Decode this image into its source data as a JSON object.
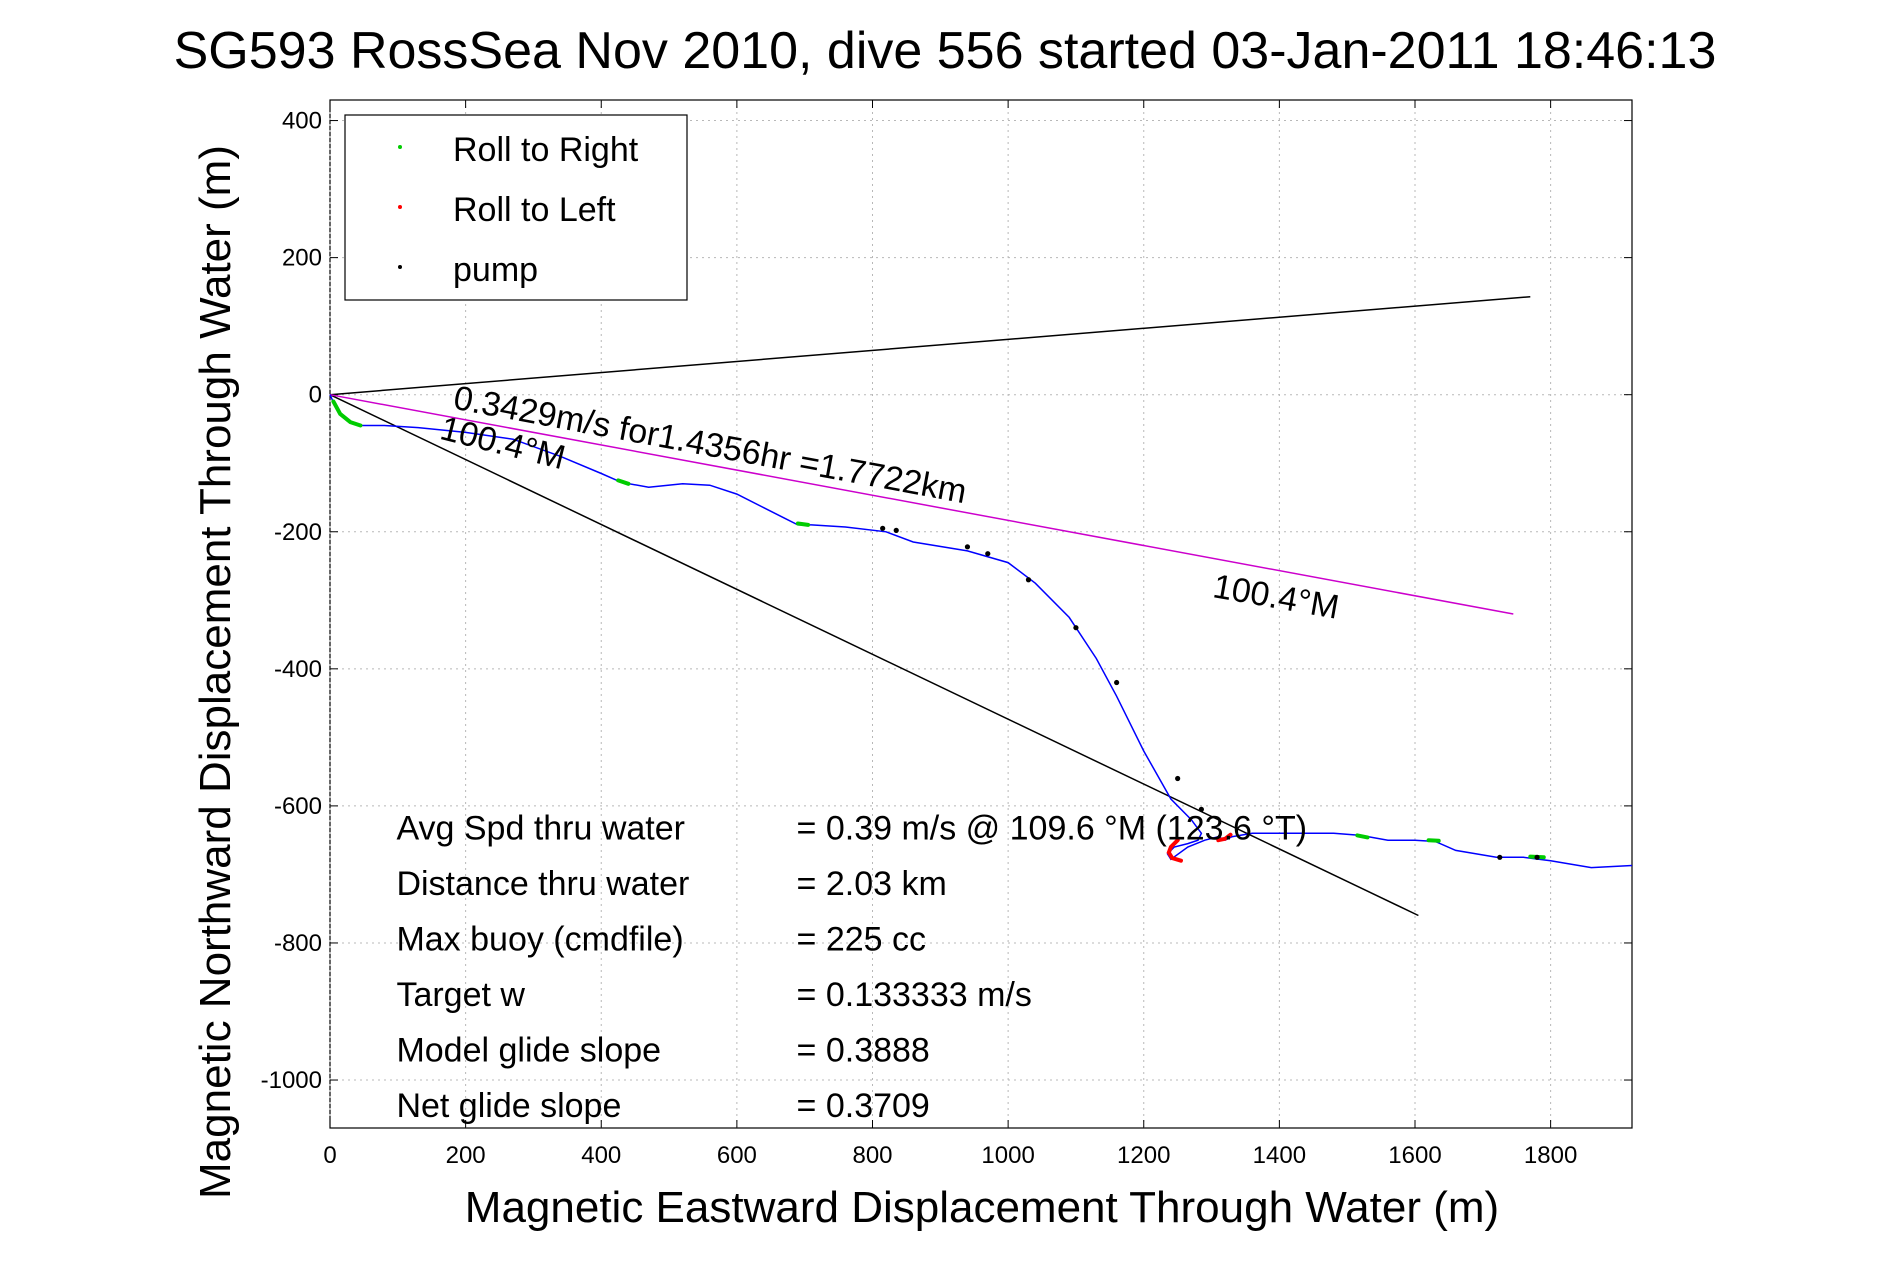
{
  "chart_data": {
    "type": "line",
    "title": "SG593 RossSea Nov 2010, dive 556 started 03-Jan-2011 18:46:13",
    "xlabel": "Magnetic Eastward Displacement Through Water (m)",
    "ylabel": "Magnetic Northward Displacement Through Water (m)",
    "xlim": [
      0,
      1920
    ],
    "ylim": [
      -1070,
      430
    ],
    "xticks": [
      0,
      200,
      400,
      600,
      800,
      1000,
      1200,
      1400,
      1600,
      1800
    ],
    "yticks": [
      400,
      200,
      0,
      -200,
      -400,
      -600,
      -800,
      -1000
    ],
    "grid": true,
    "legend_position": "top-left",
    "legend": [
      {
        "label": "Roll to Right",
        "color": "#00cc00"
      },
      {
        "label": "Roll to Left",
        "color": "#ff0000"
      },
      {
        "label": "pump",
        "color": "#000000"
      }
    ],
    "track": {
      "color": "#0000ff",
      "x": [
        0,
        10,
        25,
        45,
        80,
        130,
        200,
        270,
        340,
        400,
        430,
        470,
        520,
        560,
        600,
        640,
        670,
        690,
        710,
        760,
        820,
        860,
        940,
        1000,
        1040,
        1090,
        1130,
        1160,
        1200,
        1240,
        1270,
        1285,
        1280,
        1265,
        1245,
        1235,
        1240,
        1265,
        1290,
        1310,
        1320,
        1330,
        1360,
        1420,
        1480,
        1520,
        1560,
        1600,
        1630,
        1660,
        1720,
        1760,
        1800,
        1860,
        1920
      ],
      "y": [
        0,
        -22,
        -38,
        -45,
        -45,
        -48,
        -55,
        -65,
        -90,
        -115,
        -128,
        -135,
        -130,
        -132,
        -145,
        -165,
        -180,
        -190,
        -190,
        -193,
        -200,
        -215,
        -228,
        -245,
        -275,
        -325,
        -385,
        -440,
        -520,
        -590,
        -620,
        -640,
        -650,
        -655,
        -660,
        -670,
        -678,
        -660,
        -650,
        -645,
        -650,
        -645,
        -640,
        -640,
        -640,
        -643,
        -650,
        -650,
        -652,
        -665,
        -675,
        -675,
        -680,
        -690,
        -687
      ]
    },
    "roll_right_segments": [
      {
        "x": [
          5,
          15,
          30,
          45
        ],
        "y": [
          -10,
          -28,
          -40,
          -45
        ]
      },
      {
        "x": [
          425,
          440
        ],
        "y": [
          -125,
          -130
        ]
      },
      {
        "x": [
          690,
          705
        ],
        "y": [
          -188,
          -190
        ]
      },
      {
        "x": [
          1515,
          1530
        ],
        "y": [
          -643,
          -646
        ]
      },
      {
        "x": [
          1620,
          1635
        ],
        "y": [
          -650,
          -651
        ]
      },
      {
        "x": [
          1770,
          1790
        ],
        "y": [
          -674,
          -675
        ]
      }
    ],
    "roll_left_segments": [
      {
        "x": [
          1250,
          1240,
          1237,
          1242,
          1255
        ],
        "y": [
          -650,
          -660,
          -668,
          -676,
          -680
        ]
      },
      {
        "x": [
          1310,
          1320,
          1328
        ],
        "y": [
          -650,
          -648,
          -642
        ]
      }
    ],
    "pump_points": {
      "x": [
        815,
        835,
        940,
        970,
        1030,
        1100,
        1160,
        1250,
        1285,
        1725,
        1780
      ],
      "y": [
        -195,
        -198,
        -222,
        -232,
        -270,
        -340,
        -420,
        -560,
        -605,
        -675,
        -675
      ]
    },
    "lines": [
      {
        "name": "line-upper",
        "color": "#000000",
        "x": [
          0,
          1770
        ],
        "y": [
          0,
          143
        ]
      },
      {
        "name": "line-lower",
        "color": "#000000",
        "x": [
          0,
          1605
        ],
        "y": [
          0,
          -760
        ]
      },
      {
        "name": "line-avg",
        "color": "#cc00cc",
        "x": [
          0,
          1745
        ],
        "y": [
          0,
          -320
        ]
      }
    ],
    "annotations": {
      "speed_line_label": "0.3429m/s for1.4356hr =1.7722km",
      "heading_label_1": "100.4°M",
      "heading_label_2": "100.4°M",
      "stats": [
        {
          "label": "Avg Spd thru water",
          "value": "=  0.39 m/s @ 109.6 °M (123.6 °T)"
        },
        {
          "label": "Distance thru water",
          "value": "=  2.03 km"
        },
        {
          "label": "Max buoy (cmdfile)",
          "value": "= 225 cc"
        },
        {
          "label": "Target w",
          "value": "= 0.133333 m/s"
        },
        {
          "label": "Model glide slope",
          "value": "= 0.3888"
        },
        {
          "label": "Net glide slope",
          "value": "= 0.3709"
        }
      ]
    }
  }
}
